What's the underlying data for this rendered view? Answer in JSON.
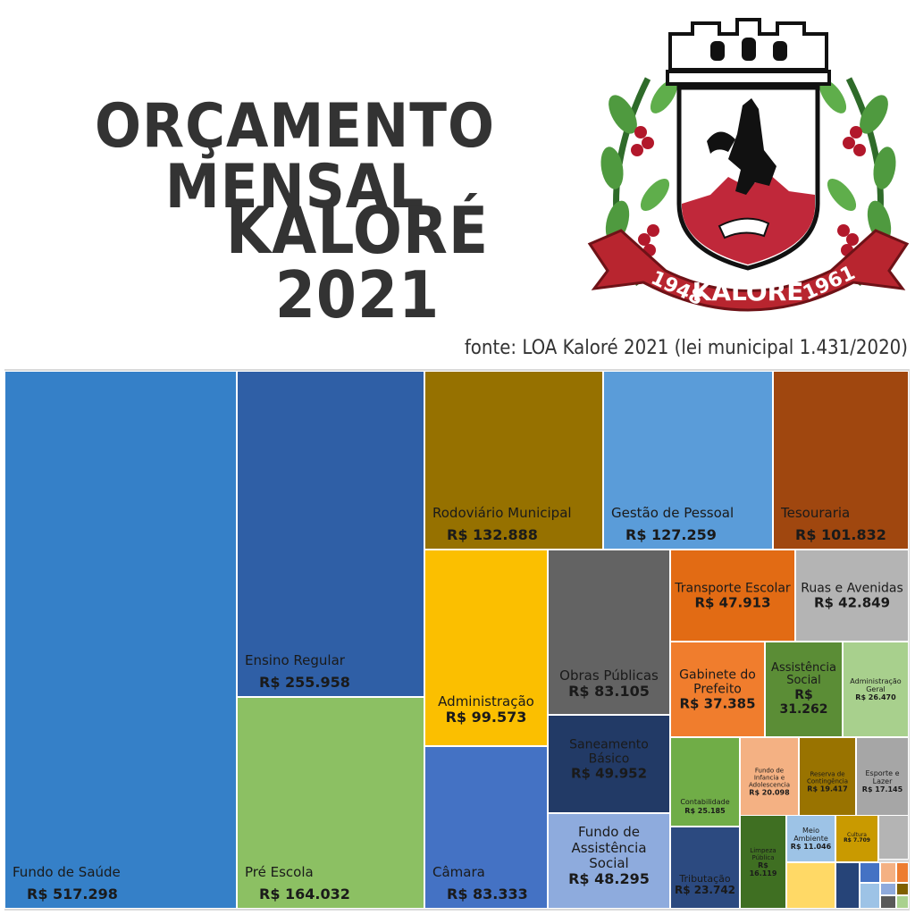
{
  "title": {
    "line1": "ORÇAMENTO MENSAL",
    "line2": "KALORÉ 2021"
  },
  "source": "fonte: LOA Kaloré 2021 (lei municipal 1.431/2020)",
  "crest": {
    "left_year": "1948",
    "right_year": "1961",
    "banner": "KALORÉ"
  },
  "chart_data": {
    "type": "treemap",
    "unit": "R$",
    "items": [
      {
        "name": "Fundo de Saúde",
        "label": "R$ 517.298",
        "value": 517298,
        "color": "#3580c8"
      },
      {
        "name": "Ensino Regular",
        "label": "R$ 255.958",
        "value": 255958,
        "color": "#2f5fa6"
      },
      {
        "name": "Pré Escola",
        "label": "R$ 164.032",
        "value": 164032,
        "color": "#8cc063"
      },
      {
        "name": "Rodoviário Municipal",
        "label": "R$ 132.888",
        "value": 132888,
        "color": "#967100"
      },
      {
        "name": "Gestão de Pessoal",
        "label": "R$ 127.259",
        "value": 127259,
        "color": "#5a9cd9"
      },
      {
        "name": "Tesouraria",
        "label": "R$ 101.832",
        "value": 101832,
        "color": "#a0470f"
      },
      {
        "name": "Administração",
        "label": "R$ 99.573",
        "value": 99573,
        "color": "#fbbf00"
      },
      {
        "name": "Obras Públicas",
        "label": "R$ 83.105",
        "value": 83105,
        "color": "#636363"
      },
      {
        "name": "Câmara",
        "label": "R$ 83.333",
        "value": 83333,
        "color": "#4472c4"
      },
      {
        "name": "Saneamento Básico",
        "label": "R$ 49.952",
        "value": 49952,
        "color": "#223a66"
      },
      {
        "name": "Fundo de Assistência Social",
        "label": "R$ 48.295",
        "value": 48295,
        "color": "#8eabdd"
      },
      {
        "name": "Transporte Escolar",
        "label": "R$ 47.913",
        "value": 47913,
        "color": "#e26b14"
      },
      {
        "name": "Ruas e Avenidas",
        "label": "R$ 42.849",
        "value": 42849,
        "color": "#b4b4b4"
      },
      {
        "name": "Gabinete do Prefeito",
        "label": "R$ 37.385",
        "value": 37385,
        "color": "#f07d2d"
      },
      {
        "name": "Assistência Social",
        "label": "R$ 31.262",
        "value": 31262,
        "color": "#5b8d36"
      },
      {
        "name": "Administração Geral",
        "label": "R$ 26.470",
        "value": 26470,
        "color": "#a8d08d"
      },
      {
        "name": "Contabilidade",
        "label": "R$ 25.185",
        "value": 25185,
        "color": "#70ad47"
      },
      {
        "name": "Fundo de Infancia e Adolescencia",
        "label": "R$ 20.098",
        "value": 20098,
        "color": "#f4b183"
      },
      {
        "name": "Reserva de Contingência",
        "label": "R$ 19.417",
        "value": 19417,
        "color": "#997300"
      },
      {
        "name": "Esporte e Lazer",
        "label": "R$ 17.145",
        "value": 17145,
        "color": "#a6a6a6"
      },
      {
        "name": "Tributação",
        "label": "R$ 23.742",
        "value": 23742,
        "color": "#2c4a80"
      },
      {
        "name": "Limpeza Pública",
        "label": "R$ 16.119",
        "value": 16119,
        "color": "#3f6f22"
      },
      {
        "name": "Meio Ambiente",
        "label": "R$ 11.046",
        "value": 11046,
        "color": "#9dc3e6"
      },
      {
        "name": "Cultura",
        "label": "R$ 7.709",
        "value": 7709,
        "color": "#c99a00"
      }
    ],
    "unlabeled_items": [
      {
        "color": "#b4b4b4"
      },
      {
        "color": "#ffd966"
      },
      {
        "color": "#264478"
      },
      {
        "color": "#4472c4"
      },
      {
        "color": "#f4b183"
      },
      {
        "color": "#ed7d31"
      },
      {
        "color": "#9dc3e6"
      },
      {
        "color": "#8faadc"
      },
      {
        "color": "#7f6000"
      },
      {
        "color": "#595959"
      },
      {
        "color": "#a9d18e"
      }
    ]
  }
}
